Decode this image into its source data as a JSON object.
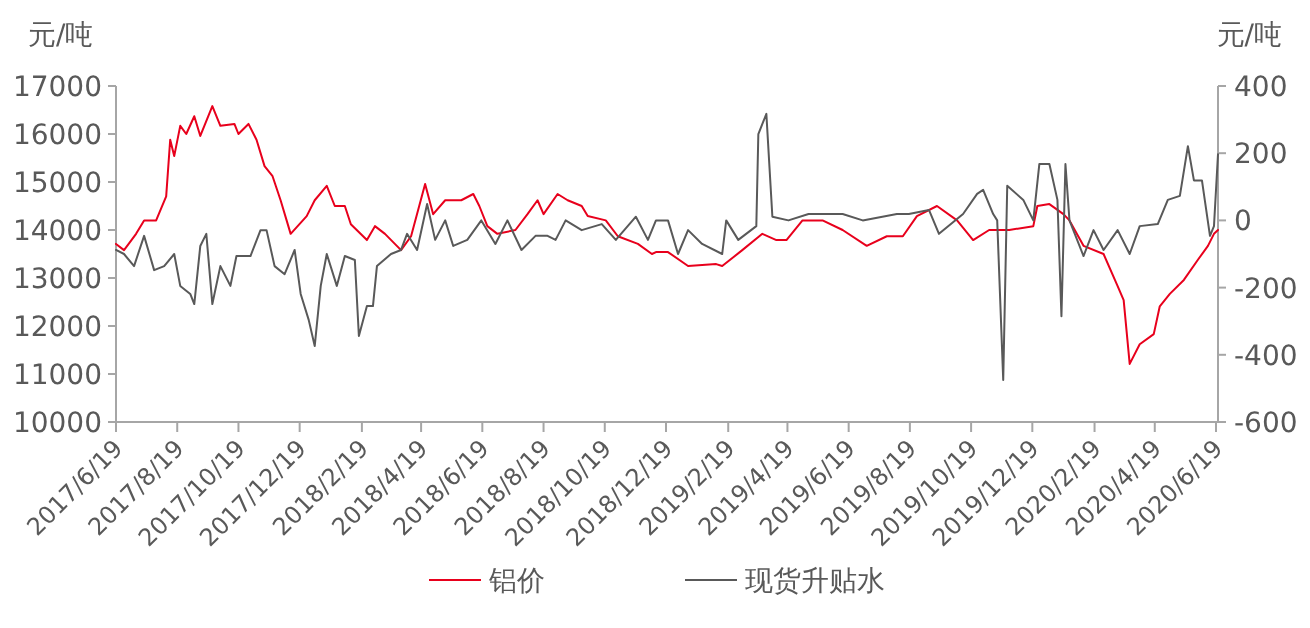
{
  "chart_data": {
    "type": "line",
    "ylabel": "元/吨",
    "y2label": "元/吨",
    "ylim": [
      10000,
      17000
    ],
    "yticks": [
      10000,
      11000,
      12000,
      13000,
      14000,
      15000,
      16000,
      17000
    ],
    "y2lim": [
      -600,
      400
    ],
    "y2ticks": [
      -600,
      -400,
      -200,
      0,
      200,
      400
    ],
    "xlim": [
      "2017-06-19",
      "2020-06-21"
    ],
    "xticks": [
      {
        "value": "2017-06-19",
        "label": "2017/6/19"
      },
      {
        "value": "2017-08-19",
        "label": "2017/8/19"
      },
      {
        "value": "2017-10-19",
        "label": "2017/10/19"
      },
      {
        "value": "2017-12-19",
        "label": "2017/12/19"
      },
      {
        "value": "2018-02-19",
        "label": "2018/2/19"
      },
      {
        "value": "2018-04-19",
        "label": "2018/4/19"
      },
      {
        "value": "2018-06-19",
        "label": "2018/6/19"
      },
      {
        "value": "2018-08-19",
        "label": "2018/8/19"
      },
      {
        "value": "2018-10-19",
        "label": "2018/10/19"
      },
      {
        "value": "2018-12-19",
        "label": "2018/12/19"
      },
      {
        "value": "2019-02-19",
        "label": "2019/2/19"
      },
      {
        "value": "2019-04-19",
        "label": "2019/4/19"
      },
      {
        "value": "2019-06-19",
        "label": "2019/6/19"
      },
      {
        "value": "2019-08-19",
        "label": "2019/8/19"
      },
      {
        "value": "2019-10-19",
        "label": "2019/10/19"
      },
      {
        "value": "2019-12-19",
        "label": "2019/12/19"
      },
      {
        "value": "2020-02-19",
        "label": "2020/2/19"
      },
      {
        "value": "2020-04-19",
        "label": "2020/4/19"
      },
      {
        "value": "2020-06-19",
        "label": "2020/6/19"
      }
    ],
    "legend": "bottom",
    "grid": false,
    "marker": "none",
    "line_style": "solid",
    "series": [
      {
        "name": "铝价",
        "color": "#e8001c",
        "x": [
          "2017-06-19",
          "2017-06-27",
          "2017-07-09",
          "2017-07-17",
          "2017-07-29",
          "2017-08-08",
          "2017-08-12",
          "2017-08-16",
          "2017-08-22",
          "2017-08-28",
          "2017-09-05",
          "2017-09-11",
          "2017-09-23",
          "2017-10-01",
          "2017-10-15",
          "2017-10-19",
          "2017-10-29",
          "2017-11-06",
          "2017-11-14",
          "2017-11-22",
          "2017-11-30",
          "2017-12-06",
          "2017-12-10",
          "2017-12-26",
          "2018-01-03",
          "2018-01-15",
          "2018-01-23",
          "2018-02-02",
          "2018-02-08",
          "2018-02-24",
          "2018-03-04",
          "2018-03-14",
          "2018-03-30",
          "2018-04-09",
          "2018-04-23",
          "2018-05-01",
          "2018-05-13",
          "2018-05-29",
          "2018-06-10",
          "2018-06-16",
          "2018-06-24",
          "2018-07-04",
          "2018-07-22",
          "2018-08-03",
          "2018-08-13",
          "2018-08-19",
          "2018-09-02",
          "2018-09-12",
          "2018-09-26",
          "2018-10-02",
          "2018-10-20",
          "2018-11-01",
          "2018-11-21",
          "2018-12-05",
          "2018-12-09",
          "2018-12-21",
          "2019-01-10",
          "2019-02-07",
          "2019-02-13",
          "2019-03-05",
          "2019-03-25",
          "2019-04-08",
          "2019-04-18",
          "2019-05-04",
          "2019-05-24",
          "2019-06-13",
          "2019-07-07",
          "2019-07-27",
          "2019-08-12",
          "2019-08-26",
          "2019-09-15",
          "2019-10-05",
          "2019-10-21",
          "2019-11-06",
          "2019-11-26",
          "2019-12-20",
          "2019-12-24",
          "2020-01-05",
          "2020-01-19",
          "2020-01-25",
          "2020-02-08",
          "2020-02-28",
          "2020-03-13",
          "2020-03-19",
          "2020-03-25",
          "2020-04-04",
          "2020-04-18",
          "2020-04-24",
          "2020-05-04",
          "2020-05-18",
          "2020-06-01",
          "2020-06-11",
          "2020-06-17",
          "2020-06-21"
        ],
        "values": [
          13710,
          13580,
          13920,
          14200,
          14200,
          14700,
          15880,
          15540,
          16170,
          16000,
          16370,
          15960,
          16580,
          16170,
          16210,
          16000,
          16210,
          15880,
          15330,
          15120,
          14620,
          14200,
          13920,
          14290,
          14620,
          14920,
          14500,
          14500,
          14120,
          13790,
          14080,
          13920,
          13580,
          13870,
          14960,
          14330,
          14620,
          14620,
          14750,
          14500,
          14080,
          13920,
          14000,
          14330,
          14620,
          14330,
          14750,
          14620,
          14500,
          14290,
          14200,
          13870,
          13710,
          13500,
          13540,
          13540,
          13250,
          13290,
          13250,
          13580,
          13920,
          13790,
          13790,
          14200,
          14200,
          14000,
          13670,
          13870,
          13870,
          14290,
          14500,
          14200,
          13790,
          14000,
          14000,
          14080,
          14500,
          14540,
          14330,
          14200,
          13670,
          13500,
          12830,
          12540,
          11210,
          11620,
          11830,
          12410,
          12670,
          12960,
          13380,
          13670,
          13920,
          14000
        ]
      },
      {
        "name": "现货升贴水",
        "color": "#595959",
        "axis": "y2",
        "x": [
          "2017-06-19",
          "2017-06-27",
          "2017-07-07",
          "2017-07-17",
          "2017-07-27",
          "2017-08-06",
          "2017-08-16",
          "2017-08-22",
          "2017-09-01",
          "2017-09-05",
          "2017-09-11",
          "2017-09-17",
          "2017-09-23",
          "2017-10-01",
          "2017-10-11",
          "2017-10-17",
          "2017-10-31",
          "2017-11-10",
          "2017-11-16",
          "2017-11-24",
          "2017-12-04",
          "2017-12-14",
          "2017-12-20",
          "2017-12-28",
          "2018-01-03",
          "2018-01-09",
          "2018-01-15",
          "2018-01-25",
          "2018-02-02",
          "2018-02-12",
          "2018-02-16",
          "2018-02-24",
          "2018-03-02",
          "2018-03-06",
          "2018-03-20",
          "2018-03-30",
          "2018-04-05",
          "2018-04-15",
          "2018-04-25",
          "2018-05-03",
          "2018-05-13",
          "2018-05-21",
          "2018-06-04",
          "2018-06-18",
          "2018-07-02",
          "2018-07-14",
          "2018-07-28",
          "2018-08-11",
          "2018-08-23",
          "2018-08-31",
          "2018-09-10",
          "2018-09-26",
          "2018-10-16",
          "2018-10-30",
          "2018-11-19",
          "2018-12-01",
          "2018-12-09",
          "2018-12-21",
          "2018-12-31",
          "2019-01-10",
          "2019-01-24",
          "2019-02-13",
          "2019-02-17",
          "2019-03-01",
          "2019-03-19",
          "2019-03-21",
          "2019-03-29",
          "2019-04-04",
          "2019-04-20",
          "2019-05-10",
          "2019-06-13",
          "2019-07-03",
          "2019-08-06",
          "2019-08-18",
          "2019-09-07",
          "2019-09-17",
          "2019-10-11",
          "2019-10-25",
          "2019-10-31",
          "2019-11-10",
          "2019-11-14",
          "2019-11-20",
          "2019-11-24",
          "2019-12-10",
          "2019-12-20",
          "2019-12-26",
          "2020-01-05",
          "2020-01-13",
          "2020-01-17",
          "2020-01-21",
          "2020-01-25",
          "2020-02-08",
          "2020-02-18",
          "2020-02-28",
          "2020-03-13",
          "2020-03-25",
          "2020-04-04",
          "2020-04-22",
          "2020-05-02",
          "2020-05-14",
          "2020-05-22",
          "2020-05-28",
          "2020-06-05",
          "2020-06-13",
          "2020-06-17",
          "2020-06-21"
        ],
        "values": [
          -88,
          -100,
          -136,
          -46,
          -148,
          -136,
          -100,
          -195,
          -219,
          -249,
          -76,
          -40,
          -249,
          -136,
          -195,
          -106,
          -106,
          -29,
          -29,
          -136,
          -160,
          -88,
          -219,
          -296,
          -374,
          -195,
          -100,
          -195,
          -106,
          -118,
          -344,
          -255,
          -255,
          -136,
          -100,
          -88,
          -40,
          -88,
          49,
          -58,
          0,
          -76,
          -58,
          0,
          -70,
          0,
          -88,
          -46,
          -46,
          -58,
          0,
          -29,
          -11,
          -58,
          11,
          -58,
          0,
          0,
          -100,
          -29,
          -70,
          -100,
          0,
          -58,
          -17,
          257,
          317,
          11,
          0,
          19,
          19,
          0,
          19,
          19,
          31,
          -40,
          19,
          79,
          91,
          19,
          0,
          -475,
          103,
          61,
          0,
          168,
          168,
          61,
          -285,
          168,
          0,
          -106,
          -29,
          -88,
          -29,
          -100,
          -17,
          -11,
          61,
          73,
          221,
          119,
          119,
          -46,
          -17,
          197
        ]
      }
    ]
  }
}
